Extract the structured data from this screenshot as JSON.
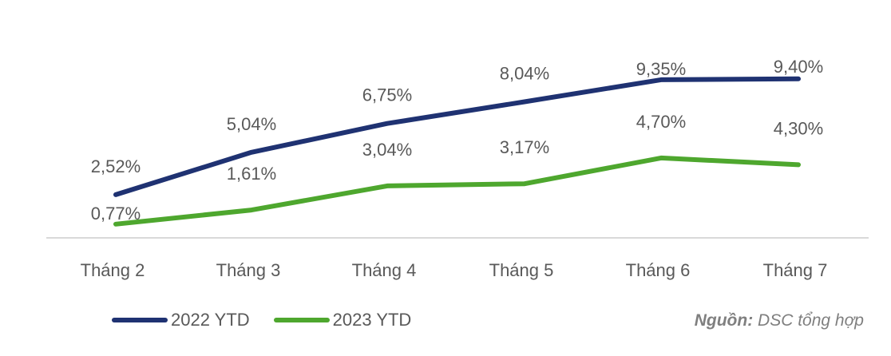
{
  "chart_data": {
    "type": "line",
    "title": "",
    "xlabel": "",
    "ylabel": "",
    "categories": [
      "Tháng 2",
      "Tháng 3",
      "Tháng 4",
      "Tháng 5",
      "Tháng 6",
      "Tháng 7"
    ],
    "series": [
      {
        "name": "2022 YTD",
        "color": "#1f3272",
        "values": [
          2.52,
          5.04,
          6.75,
          8.04,
          9.35,
          9.4
        ],
        "labels": [
          "2,52%",
          "5,04%",
          "6,75%",
          "8,04%",
          "9,35%",
          "9,40%"
        ]
      },
      {
        "name": "2023 YTD",
        "color": "#4ea72e",
        "values": [
          0.77,
          1.61,
          3.04,
          3.17,
          4.7,
          4.3
        ],
        "labels": [
          "0,77%",
          "1,61%",
          "3,04%",
          "3,17%",
          "4,70%",
          "4,30%"
        ]
      }
    ],
    "ylim": [
      0,
      10
    ],
    "grid": false,
    "y_axis_visible": false,
    "legend_position": "bottom-left",
    "baseline_color": "#d9d9d9"
  },
  "legend": {
    "items": [
      {
        "label": "2022 YTD",
        "color": "#1f3272"
      },
      {
        "label": "2023 YTD",
        "color": "#4ea72e"
      }
    ]
  },
  "source": {
    "prefix": "Nguồn:",
    "text": " DSC tổng hợp"
  }
}
